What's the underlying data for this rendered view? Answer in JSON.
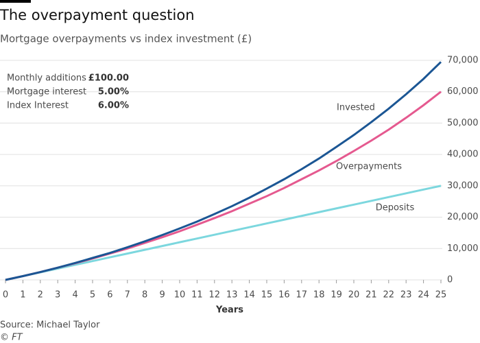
{
  "chart_data": {
    "type": "line",
    "title": "The overpayment question",
    "subtitle": "Mortgage overpayments vs index investment (£)",
    "info": [
      {
        "label": "Monthly additions",
        "value": "£100.00"
      },
      {
        "label": "Mortgage interest",
        "value": "5.00%"
      },
      {
        "label": "Index Interest",
        "value": "6.00%"
      }
    ],
    "x": [
      0,
      1,
      2,
      3,
      4,
      5,
      6,
      7,
      8,
      9,
      10,
      11,
      12,
      13,
      14,
      15,
      16,
      17,
      18,
      19,
      20,
      21,
      22,
      23,
      24,
      25
    ],
    "xlim": [
      0,
      25
    ],
    "xlabel": "Years",
    "ylim": [
      0,
      70000
    ],
    "yticks": [
      0,
      {
        "value": 10000,
        "label": "10,000"
      },
      {
        "value": 20000,
        "label": "20,000"
      },
      {
        "value": 30000,
        "label": "30,000"
      },
      {
        "value": 40000,
        "label": "40,000"
      },
      {
        "value": 50000,
        "label": "50,000"
      },
      {
        "value": 60000,
        "label": "60,000"
      },
      {
        "value": 70000,
        "label": "70,000"
      }
    ],
    "grid": true,
    "series": [
      {
        "name": "Invested",
        "color": "#1b5694",
        "values": [
          0,
          1200,
          2500,
          3900,
          5400,
          7000,
          8600,
          10400,
          12300,
          14300,
          16400,
          18600,
          21000,
          23500,
          26200,
          29100,
          32100,
          35300,
          38700,
          42400,
          46200,
          50300,
          54600,
          59200,
          64100,
          69500
        ]
      },
      {
        "name": "Overpayments",
        "color": "#e5598f",
        "values": [
          0,
          1200,
          2500,
          3900,
          5300,
          6800,
          8400,
          10000,
          11800,
          13600,
          15500,
          17600,
          19700,
          21900,
          24300,
          26700,
          29300,
          32100,
          34900,
          37900,
          41100,
          44400,
          47900,
          51700,
          55700,
          60000
        ]
      },
      {
        "name": "Deposits",
        "color": "#7cd7de",
        "values": [
          0,
          1200,
          2400,
          3600,
          4800,
          6000,
          7200,
          8400,
          9600,
          10800,
          12000,
          13200,
          14400,
          15600,
          16800,
          18000,
          19200,
          20400,
          21600,
          22800,
          24000,
          25200,
          26400,
          27600,
          28800,
          30000
        ]
      }
    ],
    "source": "Source: Michael Taylor",
    "copyright": "© FT"
  }
}
